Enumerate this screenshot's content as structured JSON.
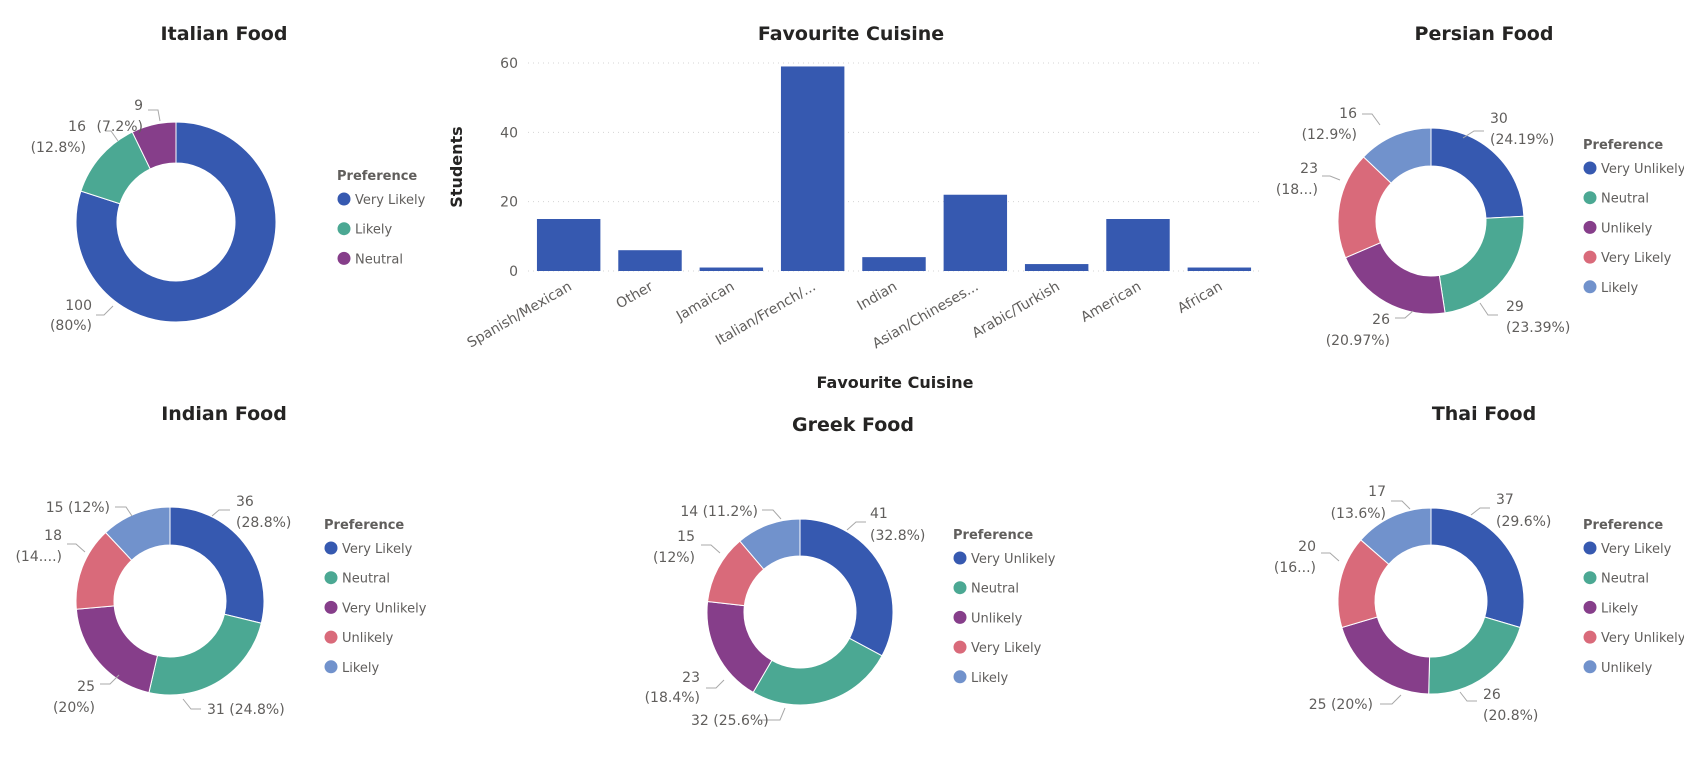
{
  "colors": {
    "dark_blue": "#3659b0",
    "teal": "#4ba893",
    "purple": "#863e8a",
    "pink": "#d96a7a",
    "light_blue": "#7192cc",
    "grid": "#d5d5d5",
    "text": "#605e5c",
    "title": "#252423"
  },
  "chart_data": [
    {
      "type": "bar",
      "title": "Favourite Cuisine",
      "xlabel": "Favourite Cuisine",
      "ylabel": "Students",
      "categories": [
        "Spanish/Mexican",
        "Other",
        "Jamaican",
        "Italian/French/...",
        "Indian",
        "Asian/Chineses...",
        "Arabic/Turkish",
        "American",
        "African"
      ],
      "values": [
        15,
        6,
        1,
        59,
        4,
        22,
        2,
        15,
        1
      ],
      "ylim": [
        0,
        60
      ],
      "yticks": [
        0,
        20,
        40,
        60
      ],
      "grid": true,
      "color": "#3659b0"
    },
    {
      "type": "pie",
      "title": "Italian Food",
      "legend_title": "Preference",
      "slices": [
        {
          "name": "Very Likely",
          "value": 100,
          "label": [
            "100",
            "(80%)"
          ],
          "color": "#3659b0"
        },
        {
          "name": "Likely",
          "value": 16,
          "label": [
            "16",
            "(12.8%)"
          ],
          "color": "#4ba893"
        },
        {
          "name": "Neutral",
          "value": 9,
          "label": [
            "9",
            "(7.2%)"
          ],
          "color": "#863e8a"
        }
      ]
    },
    {
      "type": "pie",
      "title": "Persian Food",
      "legend_title": "Preference",
      "slices": [
        {
          "name": "Very Unlikely",
          "value": 30,
          "label": [
            "30",
            "(24.19%)"
          ],
          "color": "#3659b0"
        },
        {
          "name": "Neutral",
          "value": 29,
          "label": [
            "29",
            "(23.39%)"
          ],
          "color": "#4ba893"
        },
        {
          "name": "Unlikely",
          "value": 26,
          "label": [
            "26",
            "(20.97%)"
          ],
          "color": "#863e8a"
        },
        {
          "name": "Very Likely",
          "value": 23,
          "label": [
            "23",
            "(18...)"
          ],
          "color": "#d96a7a"
        },
        {
          "name": "Likely",
          "value": 16,
          "label": [
            "16",
            "(12.9%)"
          ],
          "color": "#7192cc"
        }
      ]
    },
    {
      "type": "pie",
      "title": "Indian Food",
      "legend_title": "Preference",
      "slices": [
        {
          "name": "Very Likely",
          "value": 36,
          "label": [
            "36",
            "(28.8%)"
          ],
          "color": "#3659b0"
        },
        {
          "name": "Neutral",
          "value": 31,
          "label": [
            "31 (24.8%)"
          ],
          "color": "#4ba893"
        },
        {
          "name": "Very Unlikely",
          "value": 25,
          "label": [
            "25",
            "(20%)"
          ],
          "color": "#863e8a"
        },
        {
          "name": "Unlikely",
          "value": 18,
          "label": [
            "18",
            "(14....)"
          ],
          "color": "#d96a7a"
        },
        {
          "name": "Likely",
          "value": 15,
          "label": [
            "15 (12%)"
          ],
          "color": "#7192cc"
        }
      ]
    },
    {
      "type": "pie",
      "title": "Greek Food",
      "legend_title": "Preference",
      "slices": [
        {
          "name": "Very Unlikely",
          "value": 41,
          "label": [
            "41",
            "(32.8%)"
          ],
          "color": "#3659b0"
        },
        {
          "name": "Neutral",
          "value": 32,
          "label": [
            "32 (25.6%)"
          ],
          "color": "#4ba893"
        },
        {
          "name": "Unlikely",
          "value": 23,
          "label": [
            "23",
            "(18.4%)"
          ],
          "color": "#863e8a"
        },
        {
          "name": "Very Likely",
          "value": 15,
          "label": [
            "15",
            "(12%)"
          ],
          "color": "#d96a7a"
        },
        {
          "name": "Likely",
          "value": 14,
          "label": [
            "14 (11.2%)"
          ],
          "color": "#7192cc"
        }
      ]
    },
    {
      "type": "pie",
      "title": "Thai Food",
      "legend_title": "Preference",
      "slices": [
        {
          "name": "Very Likely",
          "value": 37,
          "label": [
            "37",
            "(29.6%)"
          ],
          "color": "#3659b0"
        },
        {
          "name": "Neutral",
          "value": 26,
          "label": [
            "26",
            "(20.8%)"
          ],
          "color": "#4ba893"
        },
        {
          "name": "Likely",
          "value": 25,
          "label": [
            "25 (20%)"
          ],
          "color": "#863e8a"
        },
        {
          "name": "Very Unlikely",
          "value": 20,
          "label": [
            "20",
            "(16...)"
          ],
          "color": "#d96a7a"
        },
        {
          "name": "Unlikely",
          "value": 17,
          "label": [
            "17",
            "(13.6%)"
          ],
          "color": "#7192cc"
        }
      ]
    }
  ]
}
